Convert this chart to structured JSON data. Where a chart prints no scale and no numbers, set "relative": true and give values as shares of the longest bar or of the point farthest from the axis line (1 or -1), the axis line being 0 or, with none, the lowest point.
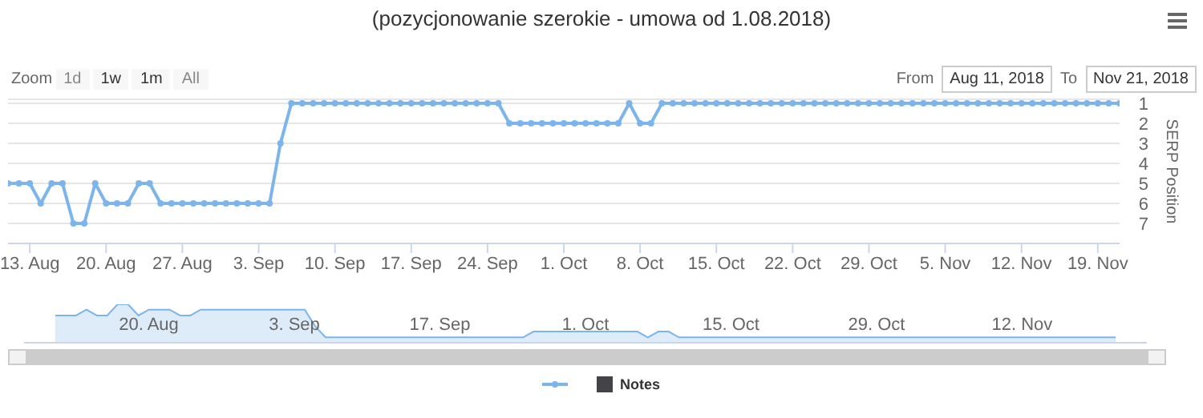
{
  "chart_data": [
    {
      "type": "line",
      "title": "(pozycjonowanie szerokie - umowa od 1.08.2018)",
      "ylabel": "SERP Position",
      "annotations": [
        "Zoom",
        "1d",
        "1w",
        "1m",
        "All",
        "From",
        "Aug 11, 2018",
        "To",
        "Nov 21, 2018",
        "Notes"
      ],
      "x": [
        "2018-08-11",
        "2018-08-12",
        "2018-08-13",
        "2018-08-14",
        "2018-08-15",
        "2018-08-16",
        "2018-08-17",
        "2018-08-18",
        "2018-08-19",
        "2018-08-20",
        "2018-08-21",
        "2018-08-22",
        "2018-08-23",
        "2018-08-24",
        "2018-08-25",
        "2018-08-26",
        "2018-08-27",
        "2018-08-28",
        "2018-08-29",
        "2018-08-30",
        "2018-08-31",
        "2018-09-01",
        "2018-09-02",
        "2018-09-03",
        "2018-09-04",
        "2018-09-05",
        "2018-09-06",
        "2018-09-07",
        "2018-09-08",
        "2018-09-09",
        "2018-09-10",
        "2018-09-11",
        "2018-09-12",
        "2018-09-13",
        "2018-09-14",
        "2018-09-15",
        "2018-09-16",
        "2018-09-17",
        "2018-09-18",
        "2018-09-19",
        "2018-09-20",
        "2018-09-21",
        "2018-09-22",
        "2018-09-23",
        "2018-09-24",
        "2018-09-25",
        "2018-09-26",
        "2018-09-27",
        "2018-09-28",
        "2018-09-29",
        "2018-09-30",
        "2018-10-01",
        "2018-10-02",
        "2018-10-03",
        "2018-10-04",
        "2018-10-05",
        "2018-10-06",
        "2018-10-07",
        "2018-10-08",
        "2018-10-09",
        "2018-10-10",
        "2018-10-11",
        "2018-10-12",
        "2018-10-13",
        "2018-10-14",
        "2018-10-15",
        "2018-10-16",
        "2018-10-17",
        "2018-10-18",
        "2018-10-19",
        "2018-10-20",
        "2018-10-21",
        "2018-10-22",
        "2018-10-23",
        "2018-10-24",
        "2018-10-25",
        "2018-10-26",
        "2018-10-27",
        "2018-10-28",
        "2018-10-29",
        "2018-10-30",
        "2018-10-31",
        "2018-11-01",
        "2018-11-02",
        "2018-11-03",
        "2018-11-04",
        "2018-11-05",
        "2018-11-06",
        "2018-11-07",
        "2018-11-08",
        "2018-11-09",
        "2018-11-10",
        "2018-11-11",
        "2018-11-12",
        "2018-11-13",
        "2018-11-14",
        "2018-11-15",
        "2018-11-16",
        "2018-11-17",
        "2018-11-18",
        "2018-11-19",
        "2018-11-20",
        "2018-11-21"
      ],
      "series": [
        {
          "color": "#7cb5ec",
          "values": [
            5,
            5,
            5,
            6,
            5,
            5,
            7,
            7,
            5,
            6,
            6,
            6,
            5,
            5,
            6,
            6,
            6,
            6,
            6,
            6,
            6,
            6,
            6,
            6,
            6,
            3,
            1,
            1,
            1,
            1,
            1,
            1,
            1,
            1,
            1,
            1,
            1,
            1,
            1,
            1,
            1,
            1,
            1,
            1,
            1,
            1,
            2,
            2,
            2,
            2,
            2,
            2,
            2,
            2,
            2,
            2,
            2,
            1,
            2,
            2,
            1,
            1,
            1,
            1,
            1,
            1,
            1,
            1,
            1,
            1,
            1,
            1,
            1,
            1,
            1,
            1,
            1,
            1,
            1,
            1,
            1,
            1,
            1,
            1,
            1,
            1,
            1,
            1,
            1,
            1,
            1,
            1,
            1,
            1,
            1,
            1,
            1,
            1,
            1,
            1,
            1,
            1,
            1
          ]
        }
      ],
      "xlim": [
        "2018-08-11",
        "2018-11-21"
      ],
      "xticks": [
        {
          "value": "2018-08-13",
          "label": "13. Aug"
        },
        {
          "value": "2018-08-20",
          "label": "20. Aug"
        },
        {
          "value": "2018-08-27",
          "label": "27. Aug"
        },
        {
          "value": "2018-09-03",
          "label": "3. Sep"
        },
        {
          "value": "2018-09-10",
          "label": "10. Sep"
        },
        {
          "value": "2018-09-17",
          "label": "17. Sep"
        },
        {
          "value": "2018-09-24",
          "label": "24. Sep"
        },
        {
          "value": "2018-10-01",
          "label": "1. Oct"
        },
        {
          "value": "2018-10-08",
          "label": "8. Oct"
        },
        {
          "value": "2018-10-15",
          "label": "15. Oct"
        },
        {
          "value": "2018-10-22",
          "label": "22. Oct"
        },
        {
          "value": "2018-10-29",
          "label": "29. Oct"
        },
        {
          "value": "2018-11-05",
          "label": "5. Nov"
        },
        {
          "value": "2018-11-12",
          "label": "12. Nov"
        },
        {
          "value": "2018-11-19",
          "label": "19. Nov"
        }
      ],
      "ylim": [
        8,
        0.8
      ],
      "yticks": [
        1,
        2,
        3,
        4,
        5,
        6,
        7
      ],
      "grid": "y",
      "marker": "circle"
    },
    {
      "type": "area",
      "x": [
        "2018-08-11",
        "2018-08-12",
        "2018-08-13",
        "2018-08-14",
        "2018-08-15",
        "2018-08-16",
        "2018-08-17",
        "2018-08-18",
        "2018-08-19",
        "2018-08-20",
        "2018-08-21",
        "2018-08-22",
        "2018-08-23",
        "2018-08-24",
        "2018-08-25",
        "2018-08-26",
        "2018-08-27",
        "2018-08-28",
        "2018-08-29",
        "2018-08-30",
        "2018-08-31",
        "2018-09-01",
        "2018-09-02",
        "2018-09-03",
        "2018-09-04",
        "2018-09-05",
        "2018-09-06",
        "2018-09-07",
        "2018-09-08",
        "2018-09-09",
        "2018-09-10",
        "2018-09-11",
        "2018-09-12",
        "2018-09-13",
        "2018-09-14",
        "2018-09-15",
        "2018-09-16",
        "2018-09-17",
        "2018-09-18",
        "2018-09-19",
        "2018-09-20",
        "2018-09-21",
        "2018-09-22",
        "2018-09-23",
        "2018-09-24",
        "2018-09-25",
        "2018-09-26",
        "2018-09-27",
        "2018-09-28",
        "2018-09-29",
        "2018-09-30",
        "2018-10-01",
        "2018-10-02",
        "2018-10-03",
        "2018-10-04",
        "2018-10-05",
        "2018-10-06",
        "2018-10-07",
        "2018-10-08",
        "2018-10-09",
        "2018-10-10",
        "2018-10-11",
        "2018-10-12",
        "2018-10-13",
        "2018-10-14",
        "2018-10-15",
        "2018-10-16",
        "2018-10-17",
        "2018-10-18",
        "2018-10-19",
        "2018-10-20",
        "2018-10-21",
        "2018-10-22",
        "2018-10-23",
        "2018-10-24",
        "2018-10-25",
        "2018-10-26",
        "2018-10-27",
        "2018-10-28",
        "2018-10-29",
        "2018-10-30",
        "2018-10-31",
        "2018-11-01",
        "2018-11-02",
        "2018-11-03",
        "2018-11-04",
        "2018-11-05",
        "2018-11-06",
        "2018-11-07",
        "2018-11-08",
        "2018-11-09",
        "2018-11-10",
        "2018-11-11",
        "2018-11-12",
        "2018-11-13",
        "2018-11-14",
        "2018-11-15",
        "2018-11-16",
        "2018-11-17",
        "2018-11-18",
        "2018-11-19",
        "2018-11-20",
        "2018-11-21"
      ],
      "series": [
        {
          "color": "#7cb5ec",
          "values": [
            0.71,
            0.71,
            0.71,
            0.86,
            0.71,
            0.71,
            1,
            1,
            0.71,
            0.86,
            0.86,
            0.86,
            0.71,
            0.71,
            0.86,
            0.86,
            0.86,
            0.86,
            0.86,
            0.86,
            0.86,
            0.86,
            0.86,
            0.86,
            0.86,
            0.43,
            0.14,
            0.14,
            0.14,
            0.14,
            0.14,
            0.14,
            0.14,
            0.14,
            0.14,
            0.14,
            0.14,
            0.14,
            0.14,
            0.14,
            0.14,
            0.14,
            0.14,
            0.14,
            0.14,
            0.14,
            0.29,
            0.29,
            0.29,
            0.29,
            0.29,
            0.29,
            0.29,
            0.29,
            0.29,
            0.29,
            0.29,
            0.14,
            0.29,
            0.29,
            0.14,
            0.14,
            0.14,
            0.14,
            0.14,
            0.14,
            0.14,
            0.14,
            0.14,
            0.14,
            0.14,
            0.14,
            0.14,
            0.14,
            0.14,
            0.14,
            0.14,
            0.14,
            0.14,
            0.14,
            0.14,
            0.14,
            0.14,
            0.14,
            0.14,
            0.14,
            0.14,
            0.14,
            0.14,
            0.14,
            0.14,
            0.14,
            0.14,
            0.14,
            0.14,
            0.14,
            0.14,
            0.14,
            0.14,
            0.14,
            0.14,
            0.14,
            0.14
          ]
        }
      ],
      "relative": true,
      "xlim": [
        "2018-08-08",
        "2018-11-24"
      ],
      "xticks": [
        {
          "value": "2018-08-20",
          "label": "20. Aug"
        },
        {
          "value": "2018-09-03",
          "label": "3. Sep"
        },
        {
          "value": "2018-09-17",
          "label": "17. Sep"
        },
        {
          "value": "2018-10-01",
          "label": "1. Oct"
        },
        {
          "value": "2018-10-15",
          "label": "15. Oct"
        },
        {
          "value": "2018-10-29",
          "label": "29. Oct"
        },
        {
          "value": "2018-11-12",
          "label": "12. Nov"
        }
      ],
      "tick_labels": "x"
    }
  ]
}
